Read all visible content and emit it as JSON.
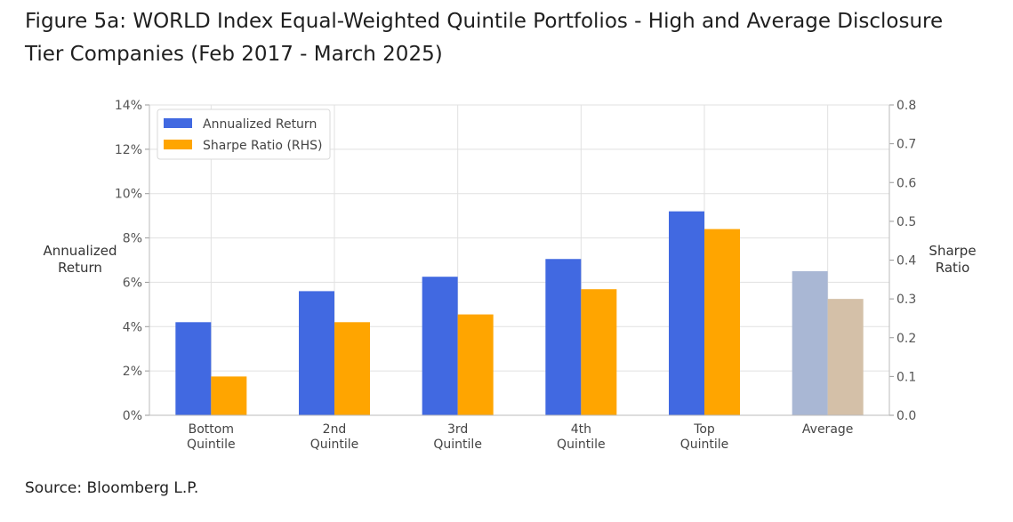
{
  "figure": {
    "title_line1": "Figure 5a: WORLD Index Equal-Weighted Quintile Portfolios - High and Average Disclosure",
    "title_line2": "Tier Companies (Feb 2017 - March 2025)",
    "source": "Source: Bloomberg L.P."
  },
  "chart_data": {
    "type": "bar",
    "categories": [
      [
        "Bottom",
        "Quintile"
      ],
      [
        "2nd",
        "Quintile"
      ],
      [
        "3rd",
        "Quintile"
      ],
      [
        "4th",
        "Quintile"
      ],
      [
        "Top",
        "Quintile"
      ],
      [
        "Average"
      ]
    ],
    "series": [
      {
        "name": "Annualized Return",
        "axis": "left",
        "values": [
          4.2,
          5.6,
          6.25,
          7.05,
          9.2,
          6.5
        ],
        "color": "#4169e1",
        "highlight_color": "#a9b7d4"
      },
      {
        "name": "Sharpe Ratio (RHS)",
        "axis": "right",
        "values": [
          0.1,
          0.24,
          0.26,
          0.325,
          0.48,
          0.3
        ],
        "color": "#ffa500",
        "highlight_color": "#d4c0a8"
      }
    ],
    "highlight_category_index": 5,
    "left_axis": {
      "title_line1": "Annualized",
      "title_line2": "Return",
      "ylim": [
        0,
        14
      ],
      "ticks": [
        "0%",
        "2%",
        "4%",
        "6%",
        "8%",
        "10%",
        "12%",
        "14%"
      ],
      "tick_values": [
        0,
        2,
        4,
        6,
        8,
        10,
        12,
        14
      ]
    },
    "right_axis": {
      "title_line1": "Sharpe",
      "title_line2": "Ratio",
      "ylim": [
        0,
        0.8
      ],
      "ticks": [
        "0.0",
        "0.1",
        "0.2",
        "0.3",
        "0.4",
        "0.5",
        "0.6",
        "0.7",
        "0.8"
      ],
      "tick_values": [
        0,
        0.1,
        0.2,
        0.3,
        0.4,
        0.5,
        0.6,
        0.7,
        0.8
      ]
    },
    "grid": true,
    "legend_position": "top-left"
  }
}
